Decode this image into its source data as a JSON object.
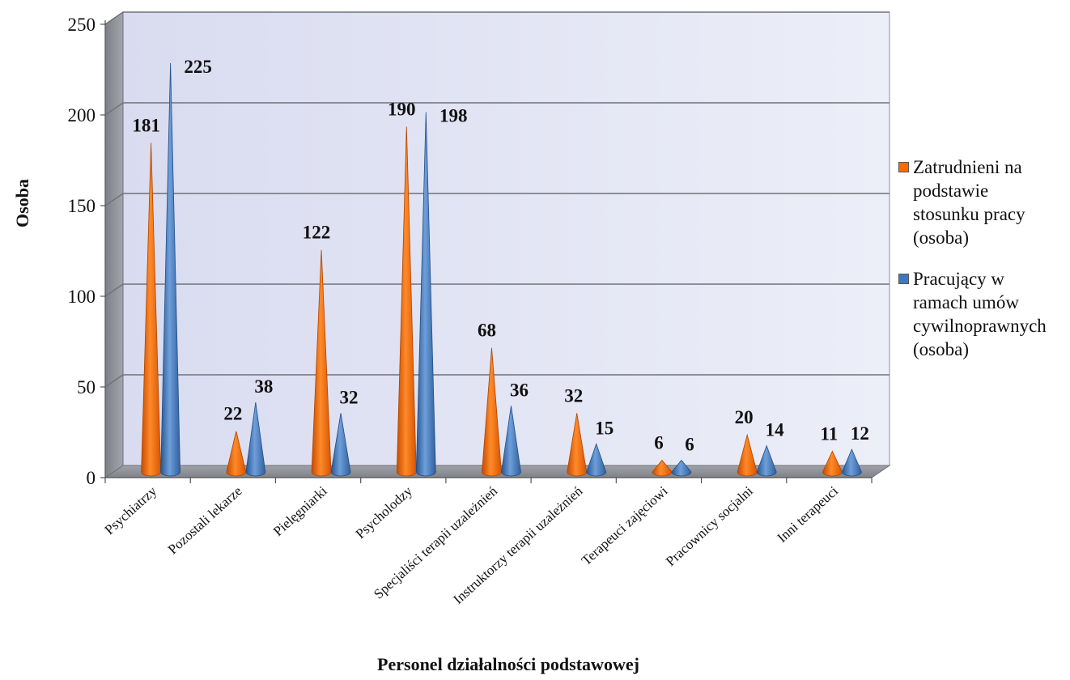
{
  "chart_data": {
    "type": "bar",
    "title": "",
    "xlabel": "Personel działalności podstawowej",
    "ylabel": "Osoba",
    "ylim": [
      0,
      250
    ],
    "yticks": [
      0,
      50,
      100,
      150,
      200,
      250
    ],
    "grid": true,
    "legend_position": "right",
    "categories": [
      "Psychiatrzy",
      "Pozostali lekarze",
      "Pielęgniarki",
      "Psycholodzy",
      "Specjaliści terapii uzależnień",
      "Instruktorzy terapii uzależnień",
      "Terapeuci zajęciowi",
      "Pracownicy socjalni",
      "Inni terapeuci"
    ],
    "series": [
      {
        "name": "Zatrudnieni na podstawie stosunku pracy (osoba)",
        "color": "#ff6a00",
        "values": [
          181,
          22,
          122,
          190,
          68,
          32,
          6,
          20,
          11
        ]
      },
      {
        "name": "Pracujący w ramach umów cywilnoprawnych (osoba)",
        "color": "#3f78c0",
        "values": [
          225,
          38,
          32,
          198,
          36,
          15,
          6,
          14,
          12
        ]
      }
    ],
    "legend_lines": [
      [
        "Zatrudnieni na",
        "podstawie",
        "stosunku pracy",
        "(osoba)"
      ],
      [
        "Pracujący w",
        "ramach umów",
        "cywilnoprawnych",
        "(osoba)"
      ]
    ]
  }
}
